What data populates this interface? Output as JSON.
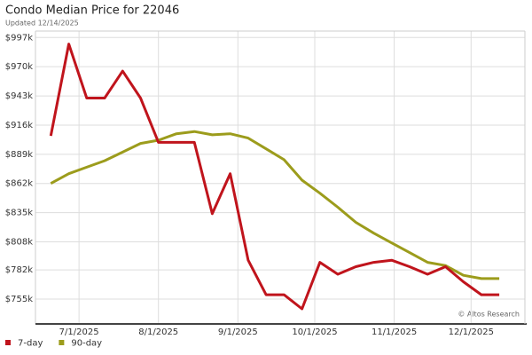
{
  "chart_data": {
    "type": "line",
    "title": "Condo Median Price for 22046",
    "subtitle": "Updated 12/14/2025",
    "watermark": "© Altos Research",
    "x": [
      "2025-06-20",
      "2025-06-27",
      "2025-07-04",
      "2025-07-11",
      "2025-07-18",
      "2025-07-25",
      "2025-08-01",
      "2025-08-08",
      "2025-08-15",
      "2025-08-22",
      "2025-08-29",
      "2025-09-05",
      "2025-09-12",
      "2025-09-19",
      "2025-09-26",
      "2025-10-03",
      "2025-10-10",
      "2025-10-17",
      "2025-10-24",
      "2025-10-31",
      "2025-11-07",
      "2025-11-14",
      "2025-11-21",
      "2025-11-28",
      "2025-12-05",
      "2025-12-12"
    ],
    "series": [
      {
        "name": "7-day",
        "color": "#c0141c",
        "values": [
          906000,
          991000,
          941000,
          941000,
          966000,
          941000,
          900000,
          900000,
          900000,
          834000,
          871000,
          791000,
          759000,
          759000,
          746000,
          789000,
          778000,
          785000,
          789000,
          791000,
          785000,
          778000,
          785000,
          771000,
          759000,
          759000
        ]
      },
      {
        "name": "90-day",
        "color": "#9c9c1c",
        "values": [
          862000,
          871000,
          877000,
          883000,
          891000,
          899000,
          902000,
          908000,
          910000,
          907000,
          908000,
          904000,
          894000,
          884000,
          865000,
          853000,
          840000,
          826000,
          816000,
          807000,
          798000,
          789000,
          786000,
          777000,
          774000,
          774000
        ]
      }
    ],
    "xlim": [
      "2025-06-14",
      "2025-12-22"
    ],
    "xticks": [
      {
        "value": "2025-07-01",
        "label": "7/1/2025"
      },
      {
        "value": "2025-08-01",
        "label": "8/1/2025"
      },
      {
        "value": "2025-09-01",
        "label": "9/1/2025"
      },
      {
        "value": "2025-10-01",
        "label": "10/1/2025"
      },
      {
        "value": "2025-11-01",
        "label": "11/1/2025"
      },
      {
        "value": "2025-12-01",
        "label": "12/1/2025"
      }
    ],
    "ylim": [
      732000,
      1003000
    ],
    "yticks": [
      {
        "value": 997000,
        "label": "$997k"
      },
      {
        "value": 970000,
        "label": "$970k"
      },
      {
        "value": 943000,
        "label": "$943k"
      },
      {
        "value": 916000,
        "label": "$916k"
      },
      {
        "value": 889000,
        "label": "$889k"
      },
      {
        "value": 862000,
        "label": "$862k"
      },
      {
        "value": 835000,
        "label": "$835k"
      },
      {
        "value": 808000,
        "label": "$808k"
      },
      {
        "value": 782000,
        "label": "$782k"
      },
      {
        "value": 755000,
        "label": "$755k"
      }
    ],
    "grid": true
  }
}
